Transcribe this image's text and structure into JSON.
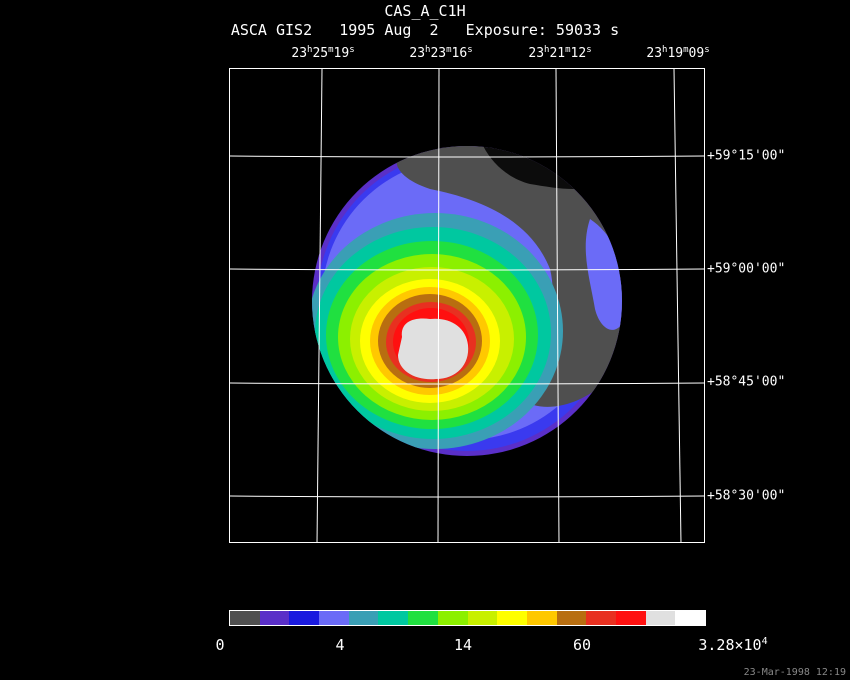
{
  "header": {
    "title": "CAS_A_C1H",
    "subtitle": "ASCA GIS2   1995 Aug  2   Exposure: 59033 s"
  },
  "ra_axis": [
    {
      "h": "23",
      "m": "25",
      "s": "19"
    },
    {
      "h": "23",
      "m": "23",
      "s": "16"
    },
    {
      "h": "23",
      "m": "21",
      "s": "12"
    },
    {
      "h": "23",
      "m": "19",
      "s": "09"
    }
  ],
  "dec_axis": [
    "+59°15'00\"",
    "+59°00'00\"",
    "+58°45'00\"",
    "+58°30'00\""
  ],
  "colorbar": {
    "colors": [
      "#4f4f4f",
      "#5a2fc8",
      "#1a1adf",
      "#6b6bf7",
      "#3a9fb5",
      "#00c8a0",
      "#20e040",
      "#8cf000",
      "#c8f000",
      "#ffff00",
      "#ffc800",
      "#b86e10",
      "#e83020",
      "#ff1010",
      "#e0e0e0",
      "#ffffff"
    ],
    "tick_labels": [
      {
        "mantissa": "0",
        "exponent": ""
      },
      {
        "mantissa": "4",
        "exponent": ""
      },
      {
        "mantissa": "14",
        "exponent": ""
      },
      {
        "mantissa": "60",
        "exponent": ""
      },
      {
        "mantissa": "3.28×10",
        "exponent": "4"
      }
    ]
  },
  "timestamp": "23-Mar-1998 12:19"
}
